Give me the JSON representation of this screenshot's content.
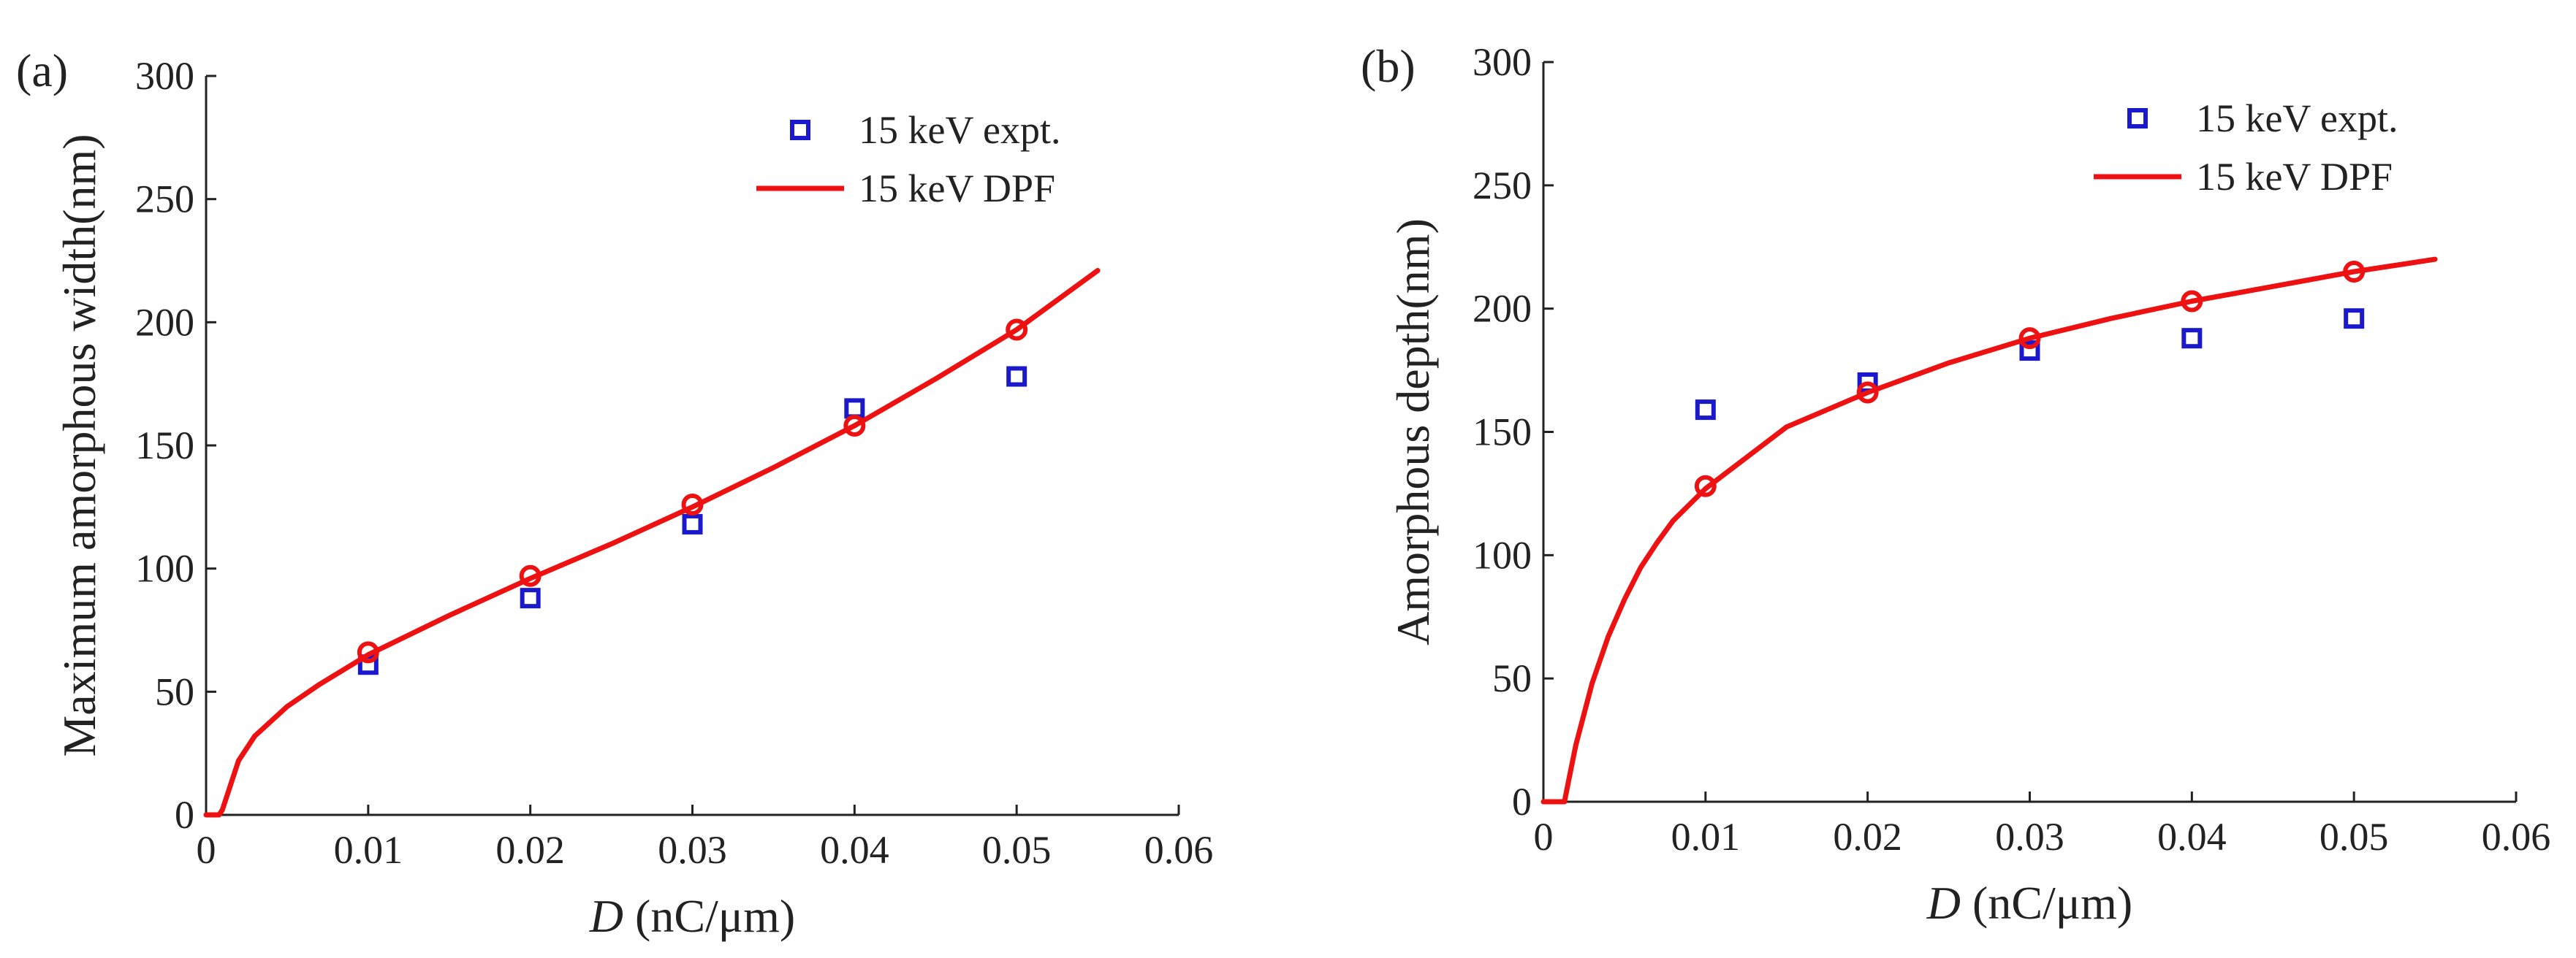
{
  "chart_data": [
    {
      "panel_label": "(a)",
      "type": "line",
      "xlabel_var": "D",
      "xlabel_unit": " (nC/μm)",
      "ylabel": "Maximum amorphous width(nm)",
      "xlim": [
        0,
        0.06
      ],
      "ylim": [
        0,
        300
      ],
      "xticks": [
        0,
        0.01,
        0.02,
        0.03,
        0.04,
        0.05,
        0.06
      ],
      "xtick_labels": [
        "0",
        "0.01",
        "0.02",
        "0.03",
        "0.04",
        "0.05",
        "0.06"
      ],
      "yticks": [
        0,
        50,
        100,
        150,
        200,
        250,
        300
      ],
      "ytick_labels": [
        "0",
        "50",
        "100",
        "150",
        "200",
        "250",
        "300"
      ],
      "legend_position": "top-right",
      "series": [
        {
          "name": "15 keV expt.",
          "kind": "scatter",
          "marker": "square",
          "color": "#1a1acc",
          "x": [
            0.01,
            0.02,
            0.03,
            0.04,
            0.05
          ],
          "y": [
            61,
            88,
            118,
            165,
            178
          ]
        },
        {
          "name": "15 keV DPF",
          "kind": "line",
          "color": "#ee1111",
          "x": [
            0,
            0.0008,
            0.001,
            0.002,
            0.003,
            0.005,
            0.007,
            0.01,
            0.015,
            0.02,
            0.025,
            0.03,
            0.035,
            0.04,
            0.045,
            0.05,
            0.055
          ],
          "y": [
            0,
            0,
            2,
            22,
            32,
            44,
            53,
            65,
            81,
            96,
            110,
            125,
            141,
            158,
            177,
            197,
            221
          ]
        },
        {
          "name": "DPF markers",
          "kind": "circle-markers",
          "color": "#ee1111",
          "x": [
            0.01,
            0.02,
            0.03,
            0.04,
            0.05
          ],
          "y": [
            66,
            97,
            126,
            158,
            197
          ]
        }
      ]
    },
    {
      "panel_label": "(b)",
      "type": "line",
      "xlabel_var": "D",
      "xlabel_unit": " (nC/μm)",
      "ylabel": "Amorphous depth(nm)",
      "xlim": [
        0,
        0.06
      ],
      "ylim": [
        0,
        300
      ],
      "xticks": [
        0,
        0.01,
        0.02,
        0.03,
        0.04,
        0.05,
        0.06
      ],
      "xtick_labels": [
        "0",
        "0.01",
        "0.02",
        "0.03",
        "0.04",
        "0.05",
        "0.06"
      ],
      "yticks": [
        0,
        50,
        100,
        150,
        200,
        250,
        300
      ],
      "ytick_labels": [
        "0",
        "50",
        "100",
        "150",
        "200",
        "250",
        "300"
      ],
      "legend_position": "top-right",
      "series": [
        {
          "name": "15 keV expt.",
          "kind": "scatter",
          "marker": "square",
          "color": "#1a1acc",
          "x": [
            0.01,
            0.02,
            0.03,
            0.04,
            0.05
          ],
          "y": [
            159,
            170,
            183,
            188,
            196
          ]
        },
        {
          "name": "15 keV DPF",
          "kind": "line",
          "color": "#ee1111",
          "x": [
            0,
            0.0013,
            0.0016,
            0.002,
            0.003,
            0.004,
            0.005,
            0.006,
            0.007,
            0.008,
            0.01,
            0.015,
            0.02,
            0.025,
            0.03,
            0.035,
            0.04,
            0.045,
            0.05,
            0.055
          ],
          "y": [
            0,
            0,
            10,
            23,
            48,
            67,
            82,
            95,
            105,
            114,
            127,
            152,
            166,
            178,
            188,
            196,
            203,
            209,
            215,
            220
          ]
        },
        {
          "name": "DPF markers",
          "kind": "circle-markers",
          "color": "#ee1111",
          "x": [
            0.01,
            0.02,
            0.03,
            0.04,
            0.05
          ],
          "y": [
            128,
            166,
            188,
            203,
            215
          ]
        }
      ]
    }
  ]
}
